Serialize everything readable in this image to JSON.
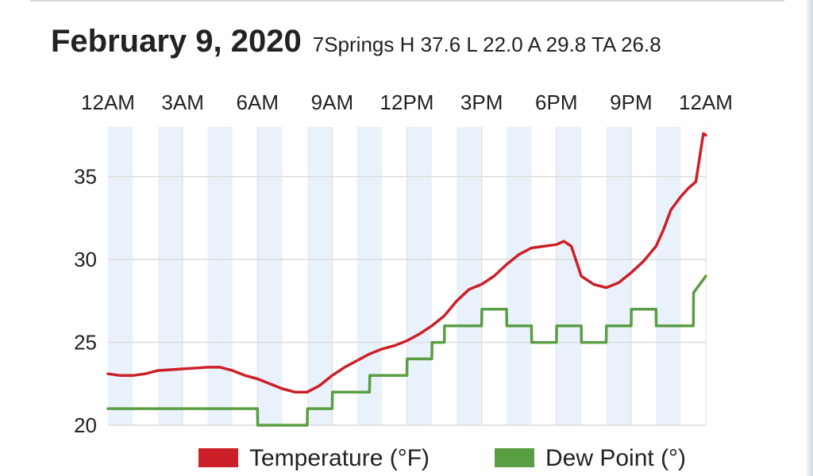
{
  "header": {
    "title": "February 9, 2020",
    "subtitle": "7Springs H 37.6 L 22.0 A 29.8 TA 26.8"
  },
  "chart_data": {
    "type": "line",
    "x_axis": {
      "position": "top",
      "unit": "hours",
      "range": [
        0,
        24
      ],
      "tick_values": [
        0,
        3,
        6,
        9,
        12,
        15,
        18,
        21,
        24
      ],
      "tick_labels": [
        "12AM",
        "3AM",
        "6AM",
        "9AM",
        "12PM",
        "3PM",
        "6PM",
        "9PM",
        "12AM"
      ]
    },
    "y_axis": {
      "range": [
        20,
        38
      ],
      "tick_values": [
        20,
        25,
        30,
        35
      ],
      "tick_labels": [
        "20",
        "25",
        "30",
        "35"
      ]
    },
    "grid": true,
    "legend_position": "bottom",
    "series": [
      {
        "name": "Temperature (°F)",
        "color": "#cc2028",
        "x": [
          0,
          0.5,
          1,
          1.5,
          2,
          3,
          4,
          4.5,
          5,
          5.5,
          6,
          6.5,
          7,
          7.5,
          8,
          8.5,
          9,
          9.5,
          10,
          10.5,
          11,
          11.5,
          12,
          12.5,
          13,
          13.5,
          14,
          14.5,
          15,
          15.5,
          16,
          16.5,
          17,
          17.5,
          18,
          18.3,
          18.6,
          19,
          19.5,
          20,
          20.5,
          21,
          21.5,
          22,
          22.3,
          22.6,
          23,
          23.3,
          23.6,
          23.9,
          24
        ],
        "values": [
          23.1,
          23.0,
          23.0,
          23.1,
          23.3,
          23.4,
          23.5,
          23.5,
          23.3,
          23.0,
          22.8,
          22.5,
          22.2,
          22.0,
          22.0,
          22.4,
          23.0,
          23.5,
          23.9,
          24.3,
          24.6,
          24.8,
          25.1,
          25.5,
          26.0,
          26.6,
          27.5,
          28.2,
          28.5,
          29.0,
          29.7,
          30.3,
          30.7,
          30.8,
          30.9,
          31.1,
          30.8,
          29.0,
          28.5,
          28.3,
          28.6,
          29.2,
          29.9,
          30.8,
          31.8,
          33.0,
          33.8,
          34.3,
          34.7,
          37.6,
          37.5
        ]
      },
      {
        "name": "Dew Point (°)",
        "color": "#5a9e44",
        "x": [
          0,
          6,
          6.01,
          8,
          8.01,
          9,
          9.01,
          10,
          10.01,
          10.5,
          10.51,
          12,
          12.01,
          13,
          13.01,
          13.5,
          13.51,
          15,
          15.01,
          16,
          16.01,
          17,
          17.01,
          18,
          18.01,
          19,
          19.01,
          20,
          20.01,
          21,
          21.01,
          22,
          22.01,
          23.5,
          23.51,
          24
        ],
        "values": [
          21,
          21,
          20,
          20,
          21,
          21,
          22,
          22,
          22,
          22,
          23,
          23,
          24,
          24,
          25,
          25,
          26,
          26,
          27,
          27,
          26,
          26,
          25,
          25,
          26,
          26,
          25,
          25,
          26,
          26,
          27,
          27,
          26,
          26,
          28,
          29
        ]
      }
    ],
    "legend": [
      {
        "label": "Temperature (°F)",
        "color": "#cc2028"
      },
      {
        "label": "Dew Point (°)",
        "color": "#5a9e44"
      }
    ]
  }
}
